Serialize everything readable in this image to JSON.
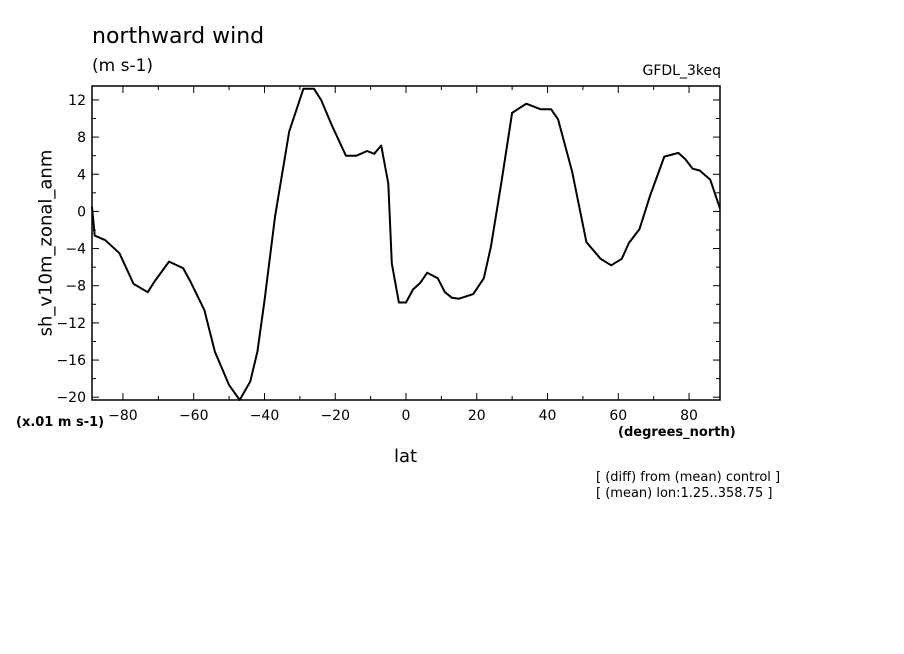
{
  "chart_data": {
    "type": "line",
    "title": "northward wind",
    "units": "(m s-1)",
    "model_label": "GFDL_3keq",
    "ylabel": "sh_v10m_zonal_anm",
    "y_scale_note": "(x.01 m s-1)",
    "xlabel": "lat",
    "x_units": "(degrees_north)",
    "notes": [
      "[ (diff) from (mean) control ]",
      "[ (mean) lon:1.25..358.75 ]"
    ],
    "xlim": [
      -88.75,
      88.75
    ],
    "ylim": [
      -20.3,
      13.5
    ],
    "x_ticks": [
      -80,
      -60,
      -40,
      -20,
      0,
      20,
      40,
      60,
      80
    ],
    "y_ticks": [
      12,
      8,
      4,
      0,
      -4,
      -8,
      -12,
      -16,
      -20
    ],
    "grid": false,
    "series": [
      {
        "x": [
          -88.75,
          -88,
          -85,
          -81,
          -77,
          -73,
          -71,
          -67,
          -63,
          -61,
          -57,
          -54,
          -50,
          -47,
          -44,
          -42,
          -40,
          -37,
          -33,
          -29,
          -26,
          -24,
          -21,
          -17,
          -14,
          -11,
          -9,
          -7,
          -5,
          -4,
          -2,
          0,
          2,
          4,
          6,
          9,
          11,
          13,
          15,
          19,
          22,
          24,
          27,
          30,
          34,
          38,
          41,
          43,
          47,
          51,
          55,
          58,
          61,
          63,
          66,
          69,
          73,
          77,
          79,
          81,
          83,
          86,
          88.75
        ],
        "y": [
          0.5,
          -2.6,
          -3.1,
          -4.5,
          -7.8,
          -8.7,
          -7.5,
          -5.4,
          -6.1,
          -7.5,
          -10.6,
          -15.1,
          -18.7,
          -20.3,
          -18.3,
          -15.1,
          -9.6,
          -0.5,
          8.6,
          13.2,
          13.2,
          12,
          9.3,
          6,
          6,
          6.5,
          6.2,
          7.1,
          3,
          -5.6,
          -9.8,
          -9.8,
          -8.4,
          -7.7,
          -6.6,
          -7.2,
          -8.7,
          -9.3,
          -9.4,
          -8.9,
          -7.2,
          -3.8,
          3.2,
          10.6,
          11.6,
          11,
          11,
          9.9,
          4.2,
          -3.3,
          -5.1,
          -5.8,
          -5.1,
          -3.4,
          -1.9,
          1.7,
          5.9,
          6.3,
          5.6,
          4.6,
          4.4,
          3.4,
          0.3
        ]
      }
    ]
  }
}
